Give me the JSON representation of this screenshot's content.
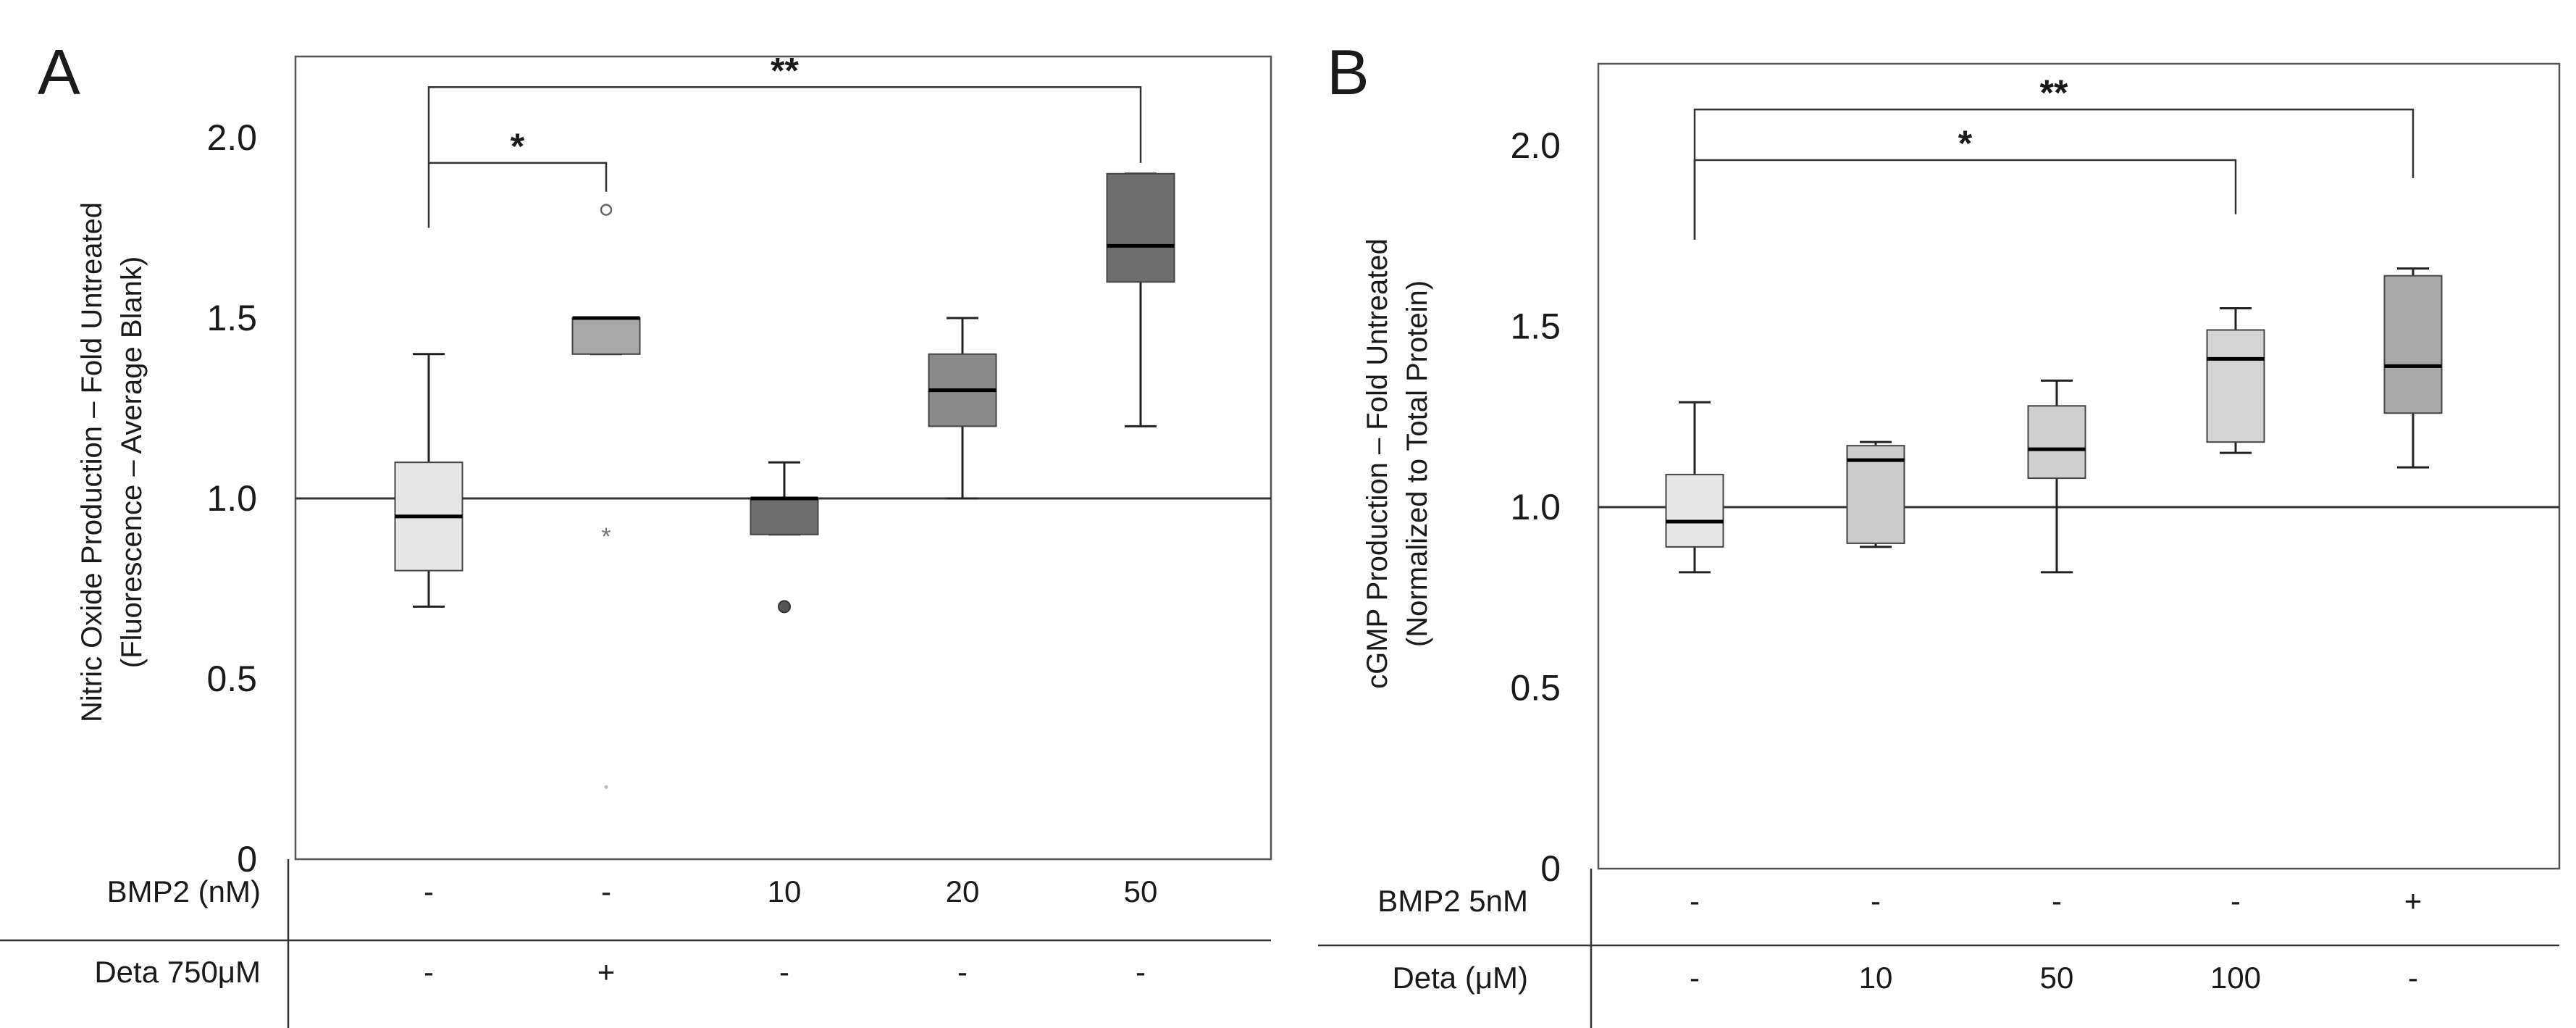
{
  "chart_data": [
    {
      "type": "box",
      "panel_label": "A",
      "ylabel": [
        "Nitric Oxide Production – Fold Untreated",
        "(Fluorescence – Average Blank)"
      ],
      "ylim": [
        0,
        2.2
      ],
      "yticks": [
        0,
        0.5,
        1.0,
        1.5,
        2.0
      ],
      "ytick_labels": [
        "0",
        "0.5",
        "1.0",
        "1.5",
        "2.0"
      ],
      "reference_line": 1.0,
      "condition_rows": [
        {
          "label": "BMP2 (nM)",
          "values": [
            "-",
            "-",
            "10",
            "20",
            "50"
          ]
        },
        {
          "label": "Deta 750μM",
          "values": [
            "-",
            "+",
            "-",
            "-",
            "-"
          ]
        }
      ],
      "boxes": [
        {
          "whisker_low": 0.7,
          "q1": 0.8,
          "median": 0.95,
          "q3": 1.1,
          "whisker_high": 1.4,
          "fill": "#e6e6e6",
          "outliers": []
        },
        {
          "whisker_low": 1.4,
          "q1": 1.4,
          "median": 1.5,
          "q3": 1.5,
          "whisker_high": 1.5,
          "fill": "#a8a8a8",
          "outliers": [
            {
              "value": 1.8,
              "symbol": "circle-open"
            },
            {
              "value": 0.9,
              "symbol": "star"
            },
            {
              "value": 0.2,
              "symbol": "dot-faint"
            }
          ]
        },
        {
          "whisker_low": 0.9,
          "q1": 0.9,
          "median": 1.0,
          "q3": 1.0,
          "whisker_high": 1.1,
          "fill": "#6e6e6e",
          "outliers": [
            {
              "value": 0.7,
              "symbol": "circle-filled"
            }
          ]
        },
        {
          "whisker_low": 1.0,
          "q1": 1.2,
          "median": 1.3,
          "q3": 1.4,
          "whisker_high": 1.5,
          "fill": "#8a8a8a",
          "outliers": []
        },
        {
          "whisker_low": 1.2,
          "q1": 1.6,
          "median": 1.7,
          "q3": 1.9,
          "whisker_high": 1.9,
          "fill": "#6e6e6e",
          "outliers": []
        }
      ],
      "significance": [
        {
          "from": 0,
          "to": 1,
          "label": "*",
          "y_bracket": 1.93,
          "y_from": 1.75,
          "y_to": 1.85
        },
        {
          "from": 0,
          "to": 4,
          "label": "**",
          "y_bracket": 2.14,
          "y_from": 1.93,
          "y_to": 1.93
        }
      ]
    },
    {
      "type": "box",
      "panel_label": "B",
      "ylabel": [
        "cGMP Production – Fold Untreated",
        "(Normalized to Total Protein)"
      ],
      "ylim": [
        0,
        2.2
      ],
      "yticks": [
        0,
        0.5,
        1.0,
        1.5,
        2.0
      ],
      "ytick_labels": [
        "0",
        "0.5",
        "1.0",
        "1.5",
        "2.0"
      ],
      "reference_line": 1.0,
      "condition_rows": [
        {
          "label": "BMP2 5nM",
          "values": [
            "-",
            "-",
            "-",
            "-",
            "+"
          ]
        },
        {
          "label": "Deta (μM)",
          "values": [
            "-",
            "10",
            "50",
            "100",
            "-"
          ]
        }
      ],
      "boxes": [
        {
          "whisker_low": 0.82,
          "q1": 0.89,
          "median": 0.96,
          "q3": 1.09,
          "whisker_high": 1.29,
          "fill": "#e6e6e6",
          "outliers": []
        },
        {
          "whisker_low": 0.89,
          "q1": 0.9,
          "median": 1.13,
          "q3": 1.17,
          "whisker_high": 1.18,
          "fill": "#cccccc",
          "outliers": []
        },
        {
          "whisker_low": 0.82,
          "q1": 1.08,
          "median": 1.16,
          "q3": 1.28,
          "whisker_high": 1.35,
          "fill": "#cfcfcf",
          "outliers": []
        },
        {
          "whisker_low": 1.15,
          "q1": 1.18,
          "median": 1.41,
          "q3": 1.49,
          "whisker_high": 1.55,
          "fill": "#d4d4d4",
          "outliers": []
        },
        {
          "whisker_low": 1.11,
          "q1": 1.26,
          "median": 1.39,
          "q3": 1.64,
          "whisker_high": 1.66,
          "fill": "#a8a8a8",
          "outliers": []
        }
      ],
      "significance": [
        {
          "from": 0,
          "to": 3,
          "label": "*",
          "y_bracket": 1.96,
          "y_from": 1.74,
          "y_to": 1.81
        },
        {
          "from": 0,
          "to": 4,
          "label": "**",
          "y_bracket": 2.1,
          "y_from": 1.74,
          "y_to": 1.91
        }
      ]
    }
  ]
}
